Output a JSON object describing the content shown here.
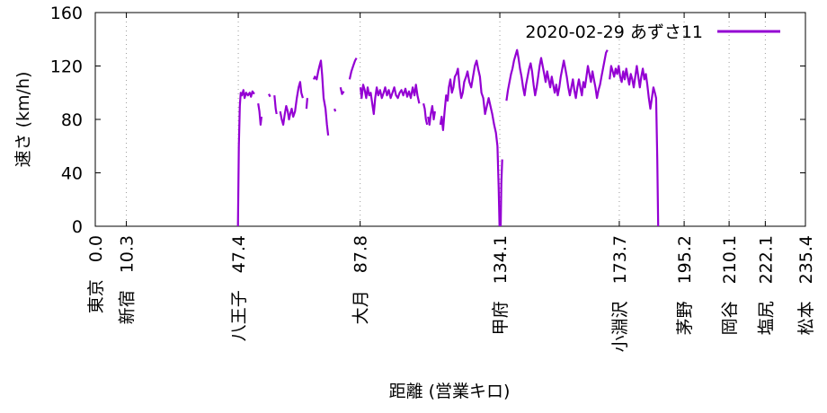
{
  "chart_data": {
    "type": "line",
    "xlabel": "距離 (営業キロ)",
    "ylabel": "速さ (km/h)",
    "xlim": [
      0,
      235.4
    ],
    "ylim": [
      0,
      160
    ],
    "yticks": [
      "0",
      "40",
      "80",
      "120",
      "160"
    ],
    "grid": "vertical dotted lines at stations",
    "legend_position": "top-right",
    "series": [
      {
        "name": "2020-02-29 あずさ11",
        "color": "#9400d3",
        "points": [
          [
            47.3,
            0
          ],
          [
            47.6,
            60
          ],
          [
            47.9,
            90
          ],
          [
            48.2,
            100
          ],
          [
            48.6,
            98
          ],
          [
            49.1,
            102
          ],
          [
            49.5,
            96
          ],
          [
            50.0,
            100
          ],
          [
            50.6,
            98
          ],
          [
            51.2,
            100
          ],
          [
            51.6,
            97
          ],
          [
            52.1,
            101
          ],
          [
            52.7,
            99
          ],
          null,
          [
            54.0,
            92
          ],
          [
            54.4,
            86
          ],
          [
            54.8,
            76
          ],
          [
            55.1,
            82
          ],
          null,
          [
            57.5,
            99
          ],
          [
            58.0,
            97
          ],
          null,
          [
            59.4,
            98
          ],
          [
            59.8,
            88
          ],
          [
            60.1,
            84
          ],
          null,
          [
            61.3,
            86
          ],
          [
            61.8,
            80
          ],
          [
            62.3,
            76
          ],
          [
            62.8,
            84
          ],
          [
            63.3,
            90
          ],
          [
            63.8,
            86
          ],
          [
            64.2,
            80
          ],
          [
            64.6,
            84
          ],
          [
            65.1,
            88
          ],
          [
            65.6,
            82
          ],
          [
            66.2,
            86
          ],
          [
            66.8,
            96
          ],
          [
            67.4,
            104
          ],
          [
            67.9,
            108
          ],
          [
            68.3,
            100
          ],
          [
            68.8,
            96
          ],
          null,
          [
            70.0,
            88
          ],
          [
            70.3,
            96
          ],
          null,
          [
            72.4,
            110
          ],
          [
            72.8,
            112
          ],
          [
            73.4,
            110
          ],
          [
            73.9,
            116
          ],
          [
            74.3,
            120
          ],
          [
            74.8,
            124
          ],
          [
            75.2,
            113
          ],
          [
            75.7,
            96
          ],
          [
            76.3,
            88
          ],
          [
            76.8,
            76
          ],
          [
            77.2,
            68
          ],
          null,
          [
            79.3,
            88
          ],
          [
            79.6,
            86
          ],
          null,
          [
            81.3,
            104
          ],
          [
            81.8,
            99
          ],
          [
            82.4,
            101
          ],
          null,
          [
            84.3,
            110
          ],
          [
            84.9,
            116
          ],
          [
            85.5,
            120
          ],
          [
            86.1,
            124
          ],
          [
            86.6,
            126
          ],
          null,
          [
            87.9,
            104
          ],
          [
            88.3,
            96
          ],
          [
            88.8,
            106
          ],
          [
            89.3,
            102
          ],
          [
            89.8,
            96
          ],
          [
            90.3,
            104
          ],
          [
            90.8,
            98
          ],
          [
            91.3,
            100
          ],
          [
            91.8,
            92
          ],
          [
            92.3,
            84
          ],
          [
            92.8,
            96
          ],
          [
            93.3,
            104
          ],
          [
            93.8,
            98
          ],
          [
            94.4,
            102
          ],
          [
            95.0,
            96
          ],
          [
            95.6,
            100
          ],
          [
            96.1,
            104
          ],
          [
            96.7,
            98
          ],
          [
            97.3,
            102
          ],
          [
            97.9,
            96
          ],
          [
            98.5,
            100
          ],
          [
            99.1,
            104
          ],
          [
            99.7,
            98
          ],
          [
            100.3,
            96
          ],
          [
            100.9,
            100
          ],
          [
            101.5,
            102
          ],
          [
            102.1,
            98
          ],
          [
            102.8,
            103
          ],
          [
            103.4,
            97
          ],
          [
            104.0,
            101
          ],
          [
            104.6,
            96
          ],
          [
            105.2,
            104
          ],
          [
            105.8,
            98
          ],
          [
            106.3,
            106
          ],
          [
            106.8,
            98
          ],
          [
            107.4,
            92
          ],
          null,
          [
            108.8,
            92
          ],
          [
            109.2,
            88
          ],
          [
            109.6,
            80
          ],
          [
            110.0,
            76
          ],
          null,
          [
            110.3,
            82
          ],
          [
            110.8,
            76
          ],
          [
            111.2,
            84
          ],
          [
            111.7,
            90
          ],
          [
            112.2,
            80
          ],
          [
            112.6,
            86
          ],
          null,
          [
            114.4,
            76
          ],
          [
            114.8,
            82
          ],
          [
            115.3,
            72
          ],
          [
            115.8,
            86
          ],
          [
            116.3,
            98
          ],
          [
            116.8,
            94
          ],
          [
            117.2,
            104
          ],
          [
            117.7,
            110
          ],
          [
            118.2,
            100
          ],
          [
            118.7,
            104
          ],
          [
            119.2,
            112
          ],
          [
            119.7,
            114
          ],
          [
            120.2,
            118
          ],
          [
            120.8,
            104
          ],
          [
            121.3,
            96
          ],
          [
            121.8,
            100
          ],
          [
            122.3,
            108
          ],
          [
            122.9,
            112
          ],
          [
            123.4,
            116
          ],
          [
            124.0,
            108
          ],
          [
            124.6,
            104
          ],
          [
            125.2,
            112
          ],
          [
            125.8,
            120
          ],
          [
            126.4,
            124
          ],
          [
            126.9,
            118
          ],
          [
            127.5,
            112
          ],
          [
            128.0,
            100
          ],
          [
            128.6,
            96
          ],
          [
            129.2,
            84
          ],
          [
            129.8,
            90
          ],
          [
            130.4,
            96
          ],
          [
            131.0,
            90
          ],
          [
            131.6,
            84
          ],
          [
            132.2,
            76
          ],
          [
            132.8,
            70
          ],
          [
            133.3,
            60
          ],
          [
            133.7,
            30
          ],
          [
            134.0,
            0
          ],
          null,
          [
            134.4,
            0
          ],
          [
            134.6,
            32
          ],
          [
            134.9,
            50
          ],
          null,
          [
            136.3,
            94
          ],
          [
            136.8,
            102
          ],
          [
            137.3,
            108
          ],
          [
            137.8,
            114
          ],
          [
            138.3,
            118
          ],
          [
            138.8,
            124
          ],
          [
            139.3,
            128
          ],
          [
            139.8,
            132
          ],
          [
            140.3,
            126
          ],
          [
            140.8,
            118
          ],
          [
            141.3,
            112
          ],
          [
            141.8,
            104
          ],
          [
            142.3,
            98
          ],
          [
            142.8,
            106
          ],
          [
            143.3,
            112
          ],
          [
            143.8,
            118
          ],
          [
            144.3,
            122
          ],
          [
            144.8,
            116
          ],
          [
            145.3,
            106
          ],
          [
            145.8,
            98
          ],
          [
            146.3,
            104
          ],
          [
            146.8,
            112
          ],
          [
            147.3,
            120
          ],
          [
            147.8,
            126
          ],
          [
            148.3,
            120
          ],
          [
            148.8,
            114
          ],
          [
            149.3,
            108
          ],
          [
            149.8,
            116
          ],
          [
            150.3,
            110
          ],
          [
            150.8,
            104
          ],
          [
            151.3,
            112
          ],
          [
            151.8,
            106
          ],
          [
            152.3,
            100
          ],
          [
            152.8,
            106
          ],
          [
            153.3,
            98
          ],
          [
            153.8,
            104
          ],
          [
            154.3,
            112
          ],
          [
            154.8,
            118
          ],
          [
            155.3,
            124
          ],
          [
            155.8,
            118
          ],
          [
            156.3,
            112
          ],
          [
            156.8,
            104
          ],
          [
            157.3,
            98
          ],
          [
            157.8,
            104
          ],
          [
            158.3,
            110
          ],
          [
            158.8,
            102
          ],
          [
            159.3,
            96
          ],
          [
            159.8,
            104
          ],
          [
            160.3,
            110
          ],
          [
            160.8,
            104
          ],
          [
            161.3,
            98
          ],
          [
            161.8,
            108
          ],
          [
            162.3,
            104
          ],
          [
            162.8,
            112
          ],
          [
            163.3,
            120
          ],
          [
            163.8,
            114
          ],
          [
            164.3,
            108
          ],
          [
            164.8,
            116
          ],
          [
            165.3,
            110
          ],
          [
            165.8,
            104
          ],
          [
            166.3,
            96
          ],
          [
            166.8,
            102
          ],
          [
            167.3,
            106
          ],
          [
            167.8,
            112
          ],
          [
            168.3,
            118
          ],
          [
            168.8,
            124
          ],
          [
            169.3,
            130
          ],
          [
            169.8,
            132
          ],
          null,
          [
            170.5,
            110
          ],
          [
            171.0,
            120
          ],
          [
            171.5,
            116
          ],
          [
            172.0,
            112
          ],
          [
            172.5,
            118
          ],
          [
            173.0,
            114
          ],
          [
            173.5,
            120
          ],
          [
            174.0,
            112
          ],
          [
            174.5,
            108
          ],
          [
            175.0,
            116
          ],
          [
            175.5,
            110
          ],
          [
            176.0,
            118
          ],
          [
            176.5,
            112
          ],
          [
            177.0,
            106
          ],
          [
            177.5,
            114
          ],
          [
            178.0,
            110
          ],
          [
            178.5,
            104
          ],
          [
            179.0,
            112
          ],
          [
            179.5,
            120
          ],
          [
            180.0,
            112
          ],
          [
            180.5,
            104
          ],
          [
            181.0,
            112
          ],
          [
            181.5,
            118
          ],
          [
            182.0,
            110
          ],
          [
            182.5,
            114
          ],
          [
            183.0,
            106
          ],
          [
            183.5,
            96
          ],
          [
            184.0,
            88
          ],
          [
            184.5,
            96
          ],
          [
            185.0,
            104
          ],
          [
            185.5,
            100
          ],
          [
            185.9,
            96
          ],
          [
            186.3,
            50
          ],
          [
            186.6,
            0
          ]
        ]
      }
    ],
    "stations": [
      {
        "name": "東京",
        "km": 0.0,
        "label": "0.0"
      },
      {
        "name": "新宿",
        "km": 10.3,
        "label": "10.3"
      },
      {
        "name": "八王子",
        "km": 47.4,
        "label": "47.4"
      },
      {
        "name": "大月",
        "km": 87.8,
        "label": "87.8"
      },
      {
        "name": "甲府",
        "km": 134.1,
        "label": "134.1"
      },
      {
        "name": "小淵沢",
        "km": 173.7,
        "label": "173.7"
      },
      {
        "name": "茅野",
        "km": 195.2,
        "label": "195.2"
      },
      {
        "name": "岡谷",
        "km": 210.1,
        "label": "210.1"
      },
      {
        "name": "塩尻",
        "km": 222.1,
        "label": "222.1"
      },
      {
        "name": "松本",
        "km": 235.4,
        "label": "235.4"
      }
    ]
  }
}
